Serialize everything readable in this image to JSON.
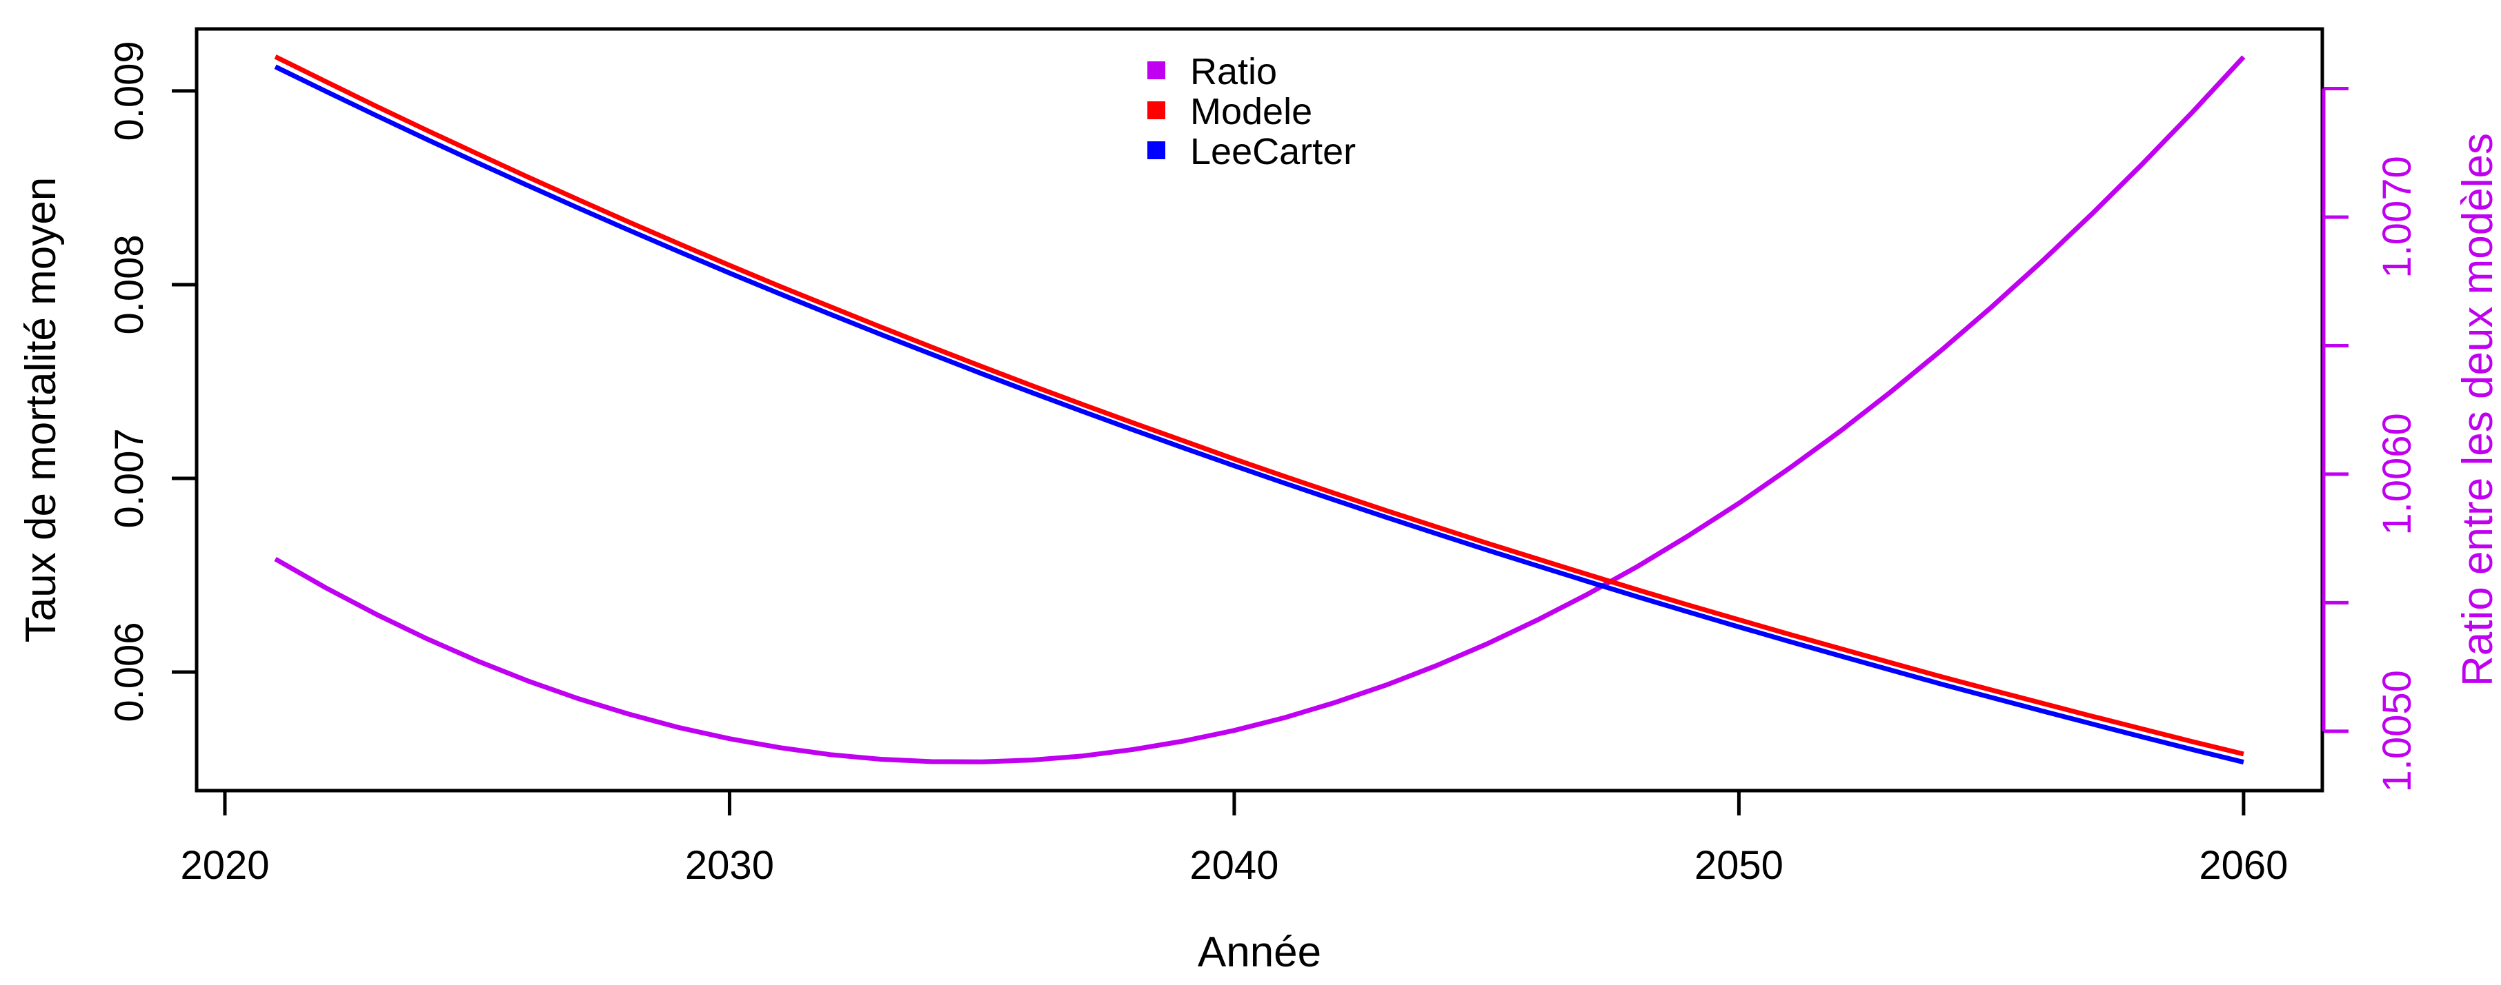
{
  "figure": {
    "background": "#FFFFFF",
    "axis_color": "#000000",
    "accent_color": "#C000F0"
  },
  "axes": {
    "x": {
      "title": "Année",
      "range": [
        2019.44,
        2061.56
      ],
      "ticks": [
        {
          "value": 2020,
          "label": "2020"
        },
        {
          "value": 2030,
          "label": "2030"
        },
        {
          "value": 2040,
          "label": "2040"
        },
        {
          "value": 2050,
          "label": "2050"
        },
        {
          "value": 2060,
          "label": "2060"
        }
      ]
    },
    "y_left": {
      "title": "Taux de mortalité moyen",
      "color": "#000000",
      "range": [
        0.005388,
        0.00932
      ],
      "ticks": [
        {
          "value": 0.006,
          "label": "0.006"
        },
        {
          "value": 0.007,
          "label": "0.007"
        },
        {
          "value": 0.008,
          "label": "0.008"
        },
        {
          "value": 0.009,
          "label": "0.009"
        }
      ]
    },
    "y_right": {
      "title": "Ratio entre les deux modèles",
      "color": "#C000F0",
      "range": [
        1.004769,
        1.007732
      ],
      "ticks": [
        {
          "value": 1.005,
          "label": "1.0050"
        },
        {
          "value": 1.0055,
          "label": ""
        },
        {
          "value": 1.006,
          "label": "1.0060"
        },
        {
          "value": 1.0065,
          "label": ""
        },
        {
          "value": 1.007,
          "label": "1.0070"
        },
        {
          "value": 1.0075,
          "label": ""
        }
      ]
    }
  },
  "legend": {
    "items": [
      {
        "label": "Ratio",
        "color": "#C000F0"
      },
      {
        "label": "Modele",
        "color": "#FF0000"
      },
      {
        "label": "LeeCarter",
        "color": "#0000FF"
      }
    ]
  },
  "chart_data": {
    "type": "line",
    "title": "",
    "xlabel": "Année",
    "ylabel_left": "Taux de mortalité moyen",
    "ylabel_right": "Ratio entre les deux modèles",
    "grid": false,
    "legend_position": "top-center",
    "x_range": [
      2019.44,
      2061.56
    ],
    "y_left_range": [
      0.005388,
      0.00932
    ],
    "y_right_range": [
      1.004769,
      1.007732
    ],
    "x": [
      2021,
      2022,
      2023,
      2024,
      2025,
      2026,
      2027,
      2028,
      2029,
      2030,
      2031,
      2032,
      2033,
      2034,
      2035,
      2036,
      2037,
      2038,
      2039,
      2040,
      2041,
      2042,
      2043,
      2044,
      2045,
      2046,
      2047,
      2048,
      2049,
      2050,
      2051,
      2052,
      2053,
      2054,
      2055,
      2056,
      2057,
      2058,
      2059,
      2060
    ],
    "series": [
      {
        "name": "Ratio",
        "axis": "right",
        "color": "#C000F0",
        "values": [
          1.00567,
          1.005558,
          1.005455,
          1.00536,
          1.005274,
          1.005196,
          1.005127,
          1.005067,
          1.005014,
          1.004971,
          1.004936,
          1.004909,
          1.004891,
          1.004882,
          1.004881,
          1.004888,
          1.004904,
          1.004929,
          1.004962,
          1.005003,
          1.005053,
          1.005112,
          1.005179,
          1.005255,
          1.005339,
          1.005432,
          1.005533,
          1.005642,
          1.005761,
          1.005887,
          1.006023,
          1.006166,
          1.006319,
          1.00648,
          1.006649,
          1.006827,
          1.007013,
          1.007208,
          1.007411,
          1.007623
        ]
      },
      {
        "name": "Modele",
        "axis": "left",
        "color": "#FF0000",
        "values": [
          0.009177,
          0.009048,
          0.008921,
          0.008797,
          0.008676,
          0.008556,
          0.008439,
          0.008324,
          0.008211,
          0.0081,
          0.007991,
          0.007886,
          0.007781,
          0.007678,
          0.007577,
          0.007478,
          0.007381,
          0.007286,
          0.007193,
          0.0071,
          0.00701,
          0.006922,
          0.006835,
          0.00675,
          0.006666,
          0.006585,
          0.006504,
          0.006424,
          0.006346,
          0.00627,
          0.006195,
          0.006122,
          0.006049,
          0.005977,
          0.005908,
          0.00584,
          0.005772,
          0.005706,
          0.00564,
          0.005577
        ]
      },
      {
        "name": "LeeCarter",
        "axis": "left",
        "color": "#0000FF",
        "values": [
          0.009125,
          0.008998,
          0.008873,
          0.00875,
          0.00863,
          0.008512,
          0.008396,
          0.008282,
          0.00817,
          0.00806,
          0.007952,
          0.007847,
          0.007743,
          0.007641,
          0.00754,
          0.007442,
          0.007345,
          0.00725,
          0.007157,
          0.007065,
          0.006975,
          0.006887,
          0.0068,
          0.006715,
          0.006631,
          0.006549,
          0.006468,
          0.006388,
          0.00631,
          0.006233,
          0.006158,
          0.006084,
          0.006011,
          0.005939,
          0.005869,
          0.0058,
          0.005732,
          0.005665,
          0.005599,
          0.005535
        ]
      }
    ]
  }
}
